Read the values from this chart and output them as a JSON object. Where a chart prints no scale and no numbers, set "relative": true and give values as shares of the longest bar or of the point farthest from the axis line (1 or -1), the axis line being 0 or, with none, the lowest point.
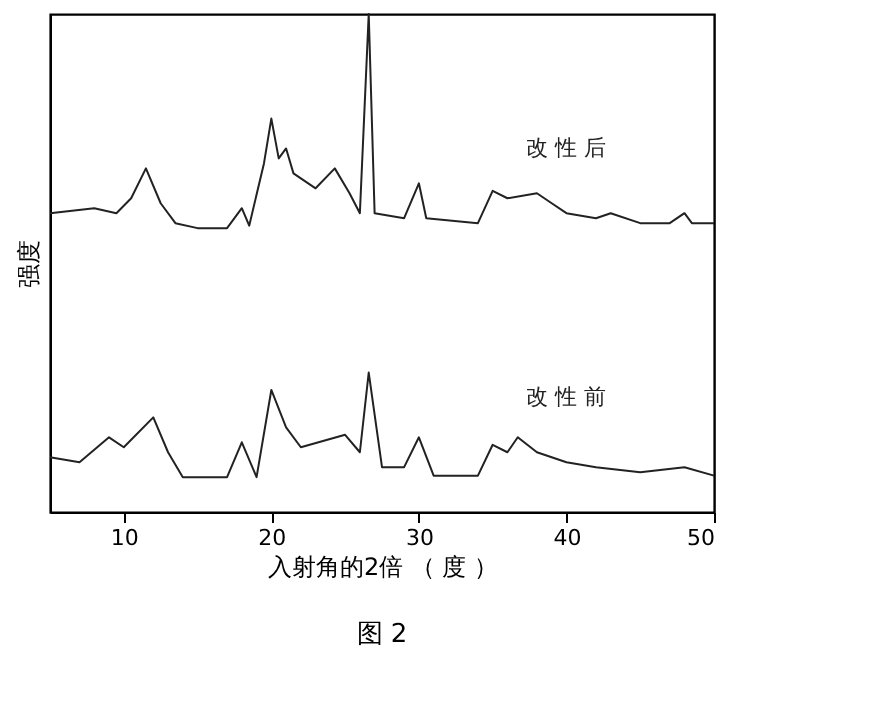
{
  "chart_data": {
    "type": "line",
    "relative": true,
    "xlabel": "入射角的2倍 （ 度 ）",
    "ylabel": "强度",
    "xlim": [
      5,
      50
    ],
    "xticks": [
      10,
      20,
      30,
      40,
      50
    ],
    "grid": false,
    "marker": "none",
    "line_style": "solid",
    "annotations": [
      "图 2"
    ],
    "series": [
      {
        "name": "改 性 后",
        "color": "#222222",
        "x": [
          5,
          8,
          9.5,
          10.5,
          11.5,
          12.5,
          13.5,
          15,
          17,
          18,
          18.5,
          19.5,
          20,
          20.5,
          21,
          21.5,
          23,
          24.3,
          25.3,
          26,
          26.6,
          27,
          29,
          30,
          30.5,
          34,
          35,
          36,
          38,
          39,
          40,
          42,
          43,
          45,
          47,
          48,
          48.5,
          50
        ],
        "values": [
          0.6,
          0.61,
          0.6,
          0.63,
          0.69,
          0.62,
          0.58,
          0.57,
          0.57,
          0.61,
          0.575,
          0.7,
          0.79,
          0.71,
          0.73,
          0.68,
          0.65,
          0.69,
          0.64,
          0.6,
          1.0,
          0.6,
          0.59,
          0.66,
          0.59,
          0.58,
          0.645,
          0.63,
          0.64,
          0.62,
          0.6,
          0.59,
          0.6,
          0.58,
          0.58,
          0.6,
          0.58,
          0.58
        ]
      },
      {
        "name": "改 性 前",
        "color": "#222222",
        "x": [
          5,
          7,
          9,
          10,
          12,
          13,
          14,
          17,
          18,
          19,
          20,
          21,
          22,
          25,
          26,
          26.6,
          27.5,
          29,
          30,
          31,
          34,
          35,
          36,
          36.7,
          38,
          40,
          42,
          45,
          48,
          50
        ],
        "values": [
          0.11,
          0.1,
          0.15,
          0.13,
          0.19,
          0.12,
          0.07,
          0.07,
          0.14,
          0.07,
          0.245,
          0.17,
          0.13,
          0.155,
          0.12,
          0.28,
          0.09,
          0.09,
          0.15,
          0.073,
          0.073,
          0.135,
          0.12,
          0.15,
          0.12,
          0.1,
          0.09,
          0.08,
          0.09,
          0.073
        ]
      }
    ]
  }
}
